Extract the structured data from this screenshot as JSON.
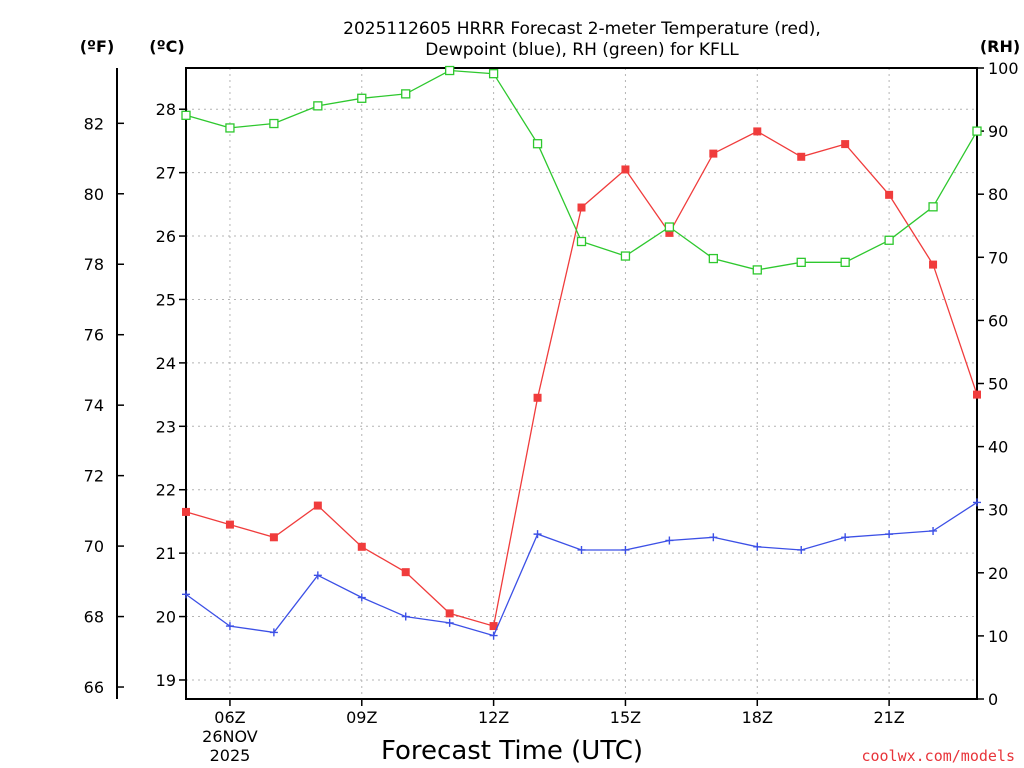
{
  "chart_data": {
    "type": "line",
    "title_line1": "2025112605 HRRR Forecast 2-meter Temperature (red),",
    "title_line2": "Dewpoint (blue), RH (green) for KFLL",
    "xlabel": "Forecast Time (UTC)",
    "credit": "coolwx.com/models",
    "unit_f": "(ºF)",
    "unit_c": "(ºC)",
    "unit_rh": "(RH)",
    "x_hours": [
      5,
      6,
      7,
      8,
      9,
      10,
      11,
      12,
      13,
      14,
      15,
      16,
      17,
      18,
      19,
      20,
      21,
      22,
      23
    ],
    "x_ticks": [
      {
        "hour": 6,
        "label": "06Z",
        "sub1": "26NOV",
        "sub2": "2025"
      },
      {
        "hour": 9,
        "label": "09Z"
      },
      {
        "hour": 12,
        "label": "12Z"
      },
      {
        "hour": 15,
        "label": "15Z"
      },
      {
        "hour": 18,
        "label": "18Z"
      },
      {
        "hour": 21,
        "label": "21Z"
      }
    ],
    "x_range": [
      5,
      23
    ],
    "c_range": [
      18.7,
      28.65
    ],
    "f_ticks": [
      66,
      68,
      70,
      72,
      74,
      76,
      78,
      80,
      82
    ],
    "c_ticks": [
      19,
      20,
      21,
      22,
      23,
      24,
      25,
      26,
      27,
      28
    ],
    "rh_range": [
      0,
      100
    ],
    "rh_ticks": [
      0,
      10,
      20,
      30,
      40,
      50,
      60,
      70,
      80,
      90,
      100
    ],
    "series": [
      {
        "name": "Temperature",
        "unit": "C",
        "color": "#f03c3c",
        "marker": "filled-square",
        "values": [
          21.65,
          21.45,
          21.25,
          21.75,
          21.1,
          20.7,
          20.05,
          19.85,
          23.45,
          26.45,
          27.05,
          26.05,
          27.3,
          27.65,
          27.25,
          27.45,
          26.65,
          25.55,
          23.5
        ]
      },
      {
        "name": "Dewpoint",
        "unit": "C",
        "color": "#3c50e6",
        "marker": "plus",
        "values": [
          20.35,
          19.85,
          19.75,
          20.65,
          20.3,
          20.0,
          19.9,
          19.7,
          21.3,
          21.05,
          21.05,
          21.2,
          21.25,
          21.1,
          21.05,
          21.25,
          21.3,
          21.35,
          21.8
        ]
      },
      {
        "name": "RH",
        "unit": "%",
        "color": "#2ec82e",
        "marker": "open-square",
        "values": [
          92.5,
          90.5,
          91.2,
          94.0,
          95.2,
          95.9,
          99.6,
          99.1,
          88.0,
          72.5,
          70.2,
          74.8,
          69.8,
          68.0,
          69.2,
          69.2,
          72.7,
          78.0,
          90.0
        ]
      }
    ]
  }
}
